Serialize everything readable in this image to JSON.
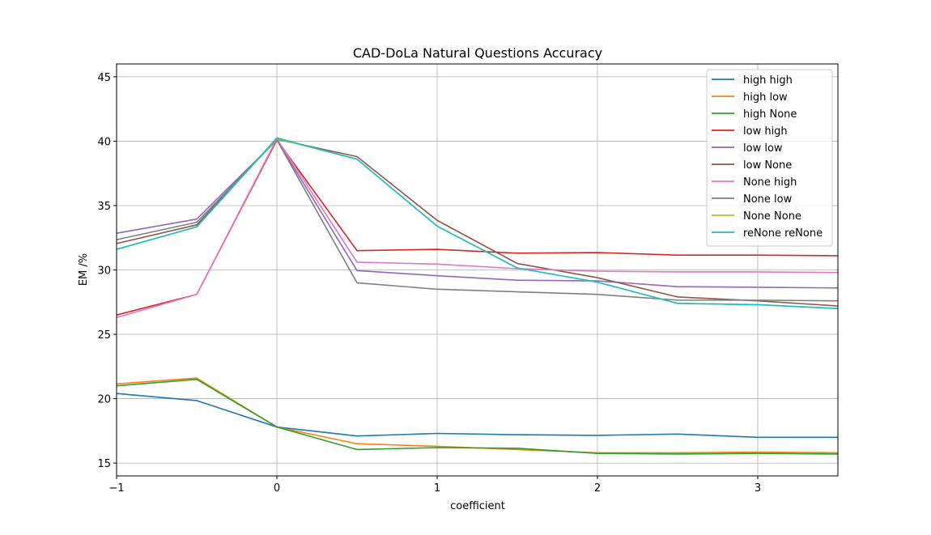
{
  "chart_data": {
    "type": "line",
    "title": "CAD-DoLa Natural Questions Accuracy",
    "xlabel": "coefficient",
    "ylabel": "EM /%",
    "xlim": [
      -1.0,
      3.5
    ],
    "ylim": [
      14.0,
      46.0
    ],
    "xticks": [
      -1,
      0,
      1,
      2,
      3
    ],
    "xtick_labels": [
      "−1",
      "0",
      "1",
      "2",
      "3"
    ],
    "yticks": [
      15,
      20,
      25,
      30,
      35,
      40,
      45
    ],
    "ytick_labels": [
      "15",
      "20",
      "25",
      "30",
      "35",
      "40",
      "45"
    ],
    "grid": true,
    "legend_position": "top-right",
    "x": [
      -1.0,
      -0.5,
      0.0,
      0.5,
      1.0,
      1.5,
      2.0,
      2.5,
      3.0,
      3.5
    ],
    "series": [
      {
        "name": "high high",
        "color": "#1f77b4",
        "values": [
          20.4,
          19.85,
          17.8,
          17.1,
          17.3,
          17.2,
          17.15,
          17.25,
          17.0,
          17.0
        ]
      },
      {
        "name": "high low",
        "color": "#ff7f0e",
        "values": [
          21.15,
          21.6,
          17.8,
          16.5,
          16.3,
          16.05,
          15.8,
          15.8,
          15.85,
          15.8
        ]
      },
      {
        "name": "high None",
        "color": "#2ca02c",
        "values": [
          21.0,
          21.5,
          17.8,
          16.05,
          16.2,
          16.15,
          15.75,
          15.7,
          15.75,
          15.7
        ]
      },
      {
        "name": "low high",
        "color": "#d62728",
        "values": [
          26.5,
          28.1,
          40.1,
          31.5,
          31.6,
          31.3,
          31.35,
          31.15,
          31.15,
          31.1
        ]
      },
      {
        "name": "low low",
        "color": "#9467bd",
        "values": [
          32.85,
          33.95,
          40.1,
          29.95,
          29.55,
          29.2,
          29.15,
          28.7,
          28.65,
          28.6
        ]
      },
      {
        "name": "low None",
        "color": "#8c564b",
        "values": [
          32.05,
          33.5,
          40.15,
          38.8,
          33.85,
          30.5,
          29.4,
          27.9,
          27.6,
          27.2
        ]
      },
      {
        "name": "None high",
        "color": "#e377c2",
        "values": [
          26.3,
          28.1,
          40.2,
          30.6,
          30.45,
          30.1,
          29.9,
          29.85,
          29.85,
          29.8
        ]
      },
      {
        "name": "None low",
        "color": "#7f7f7f",
        "values": [
          32.35,
          33.7,
          40.1,
          29.0,
          28.5,
          28.3,
          28.1,
          27.65,
          27.65,
          27.6
        ]
      },
      {
        "name": "None None",
        "color": "#bcbd22",
        "values": [
          31.6,
          33.35,
          40.2,
          38.6,
          33.4,
          30.15,
          29.05,
          27.4,
          27.3,
          27.0
        ]
      },
      {
        "name": "reNone reNone",
        "color": "#17becf",
        "values": [
          31.6,
          33.35,
          40.25,
          38.6,
          33.4,
          30.15,
          29.05,
          27.4,
          27.3,
          27.0
        ]
      }
    ]
  }
}
